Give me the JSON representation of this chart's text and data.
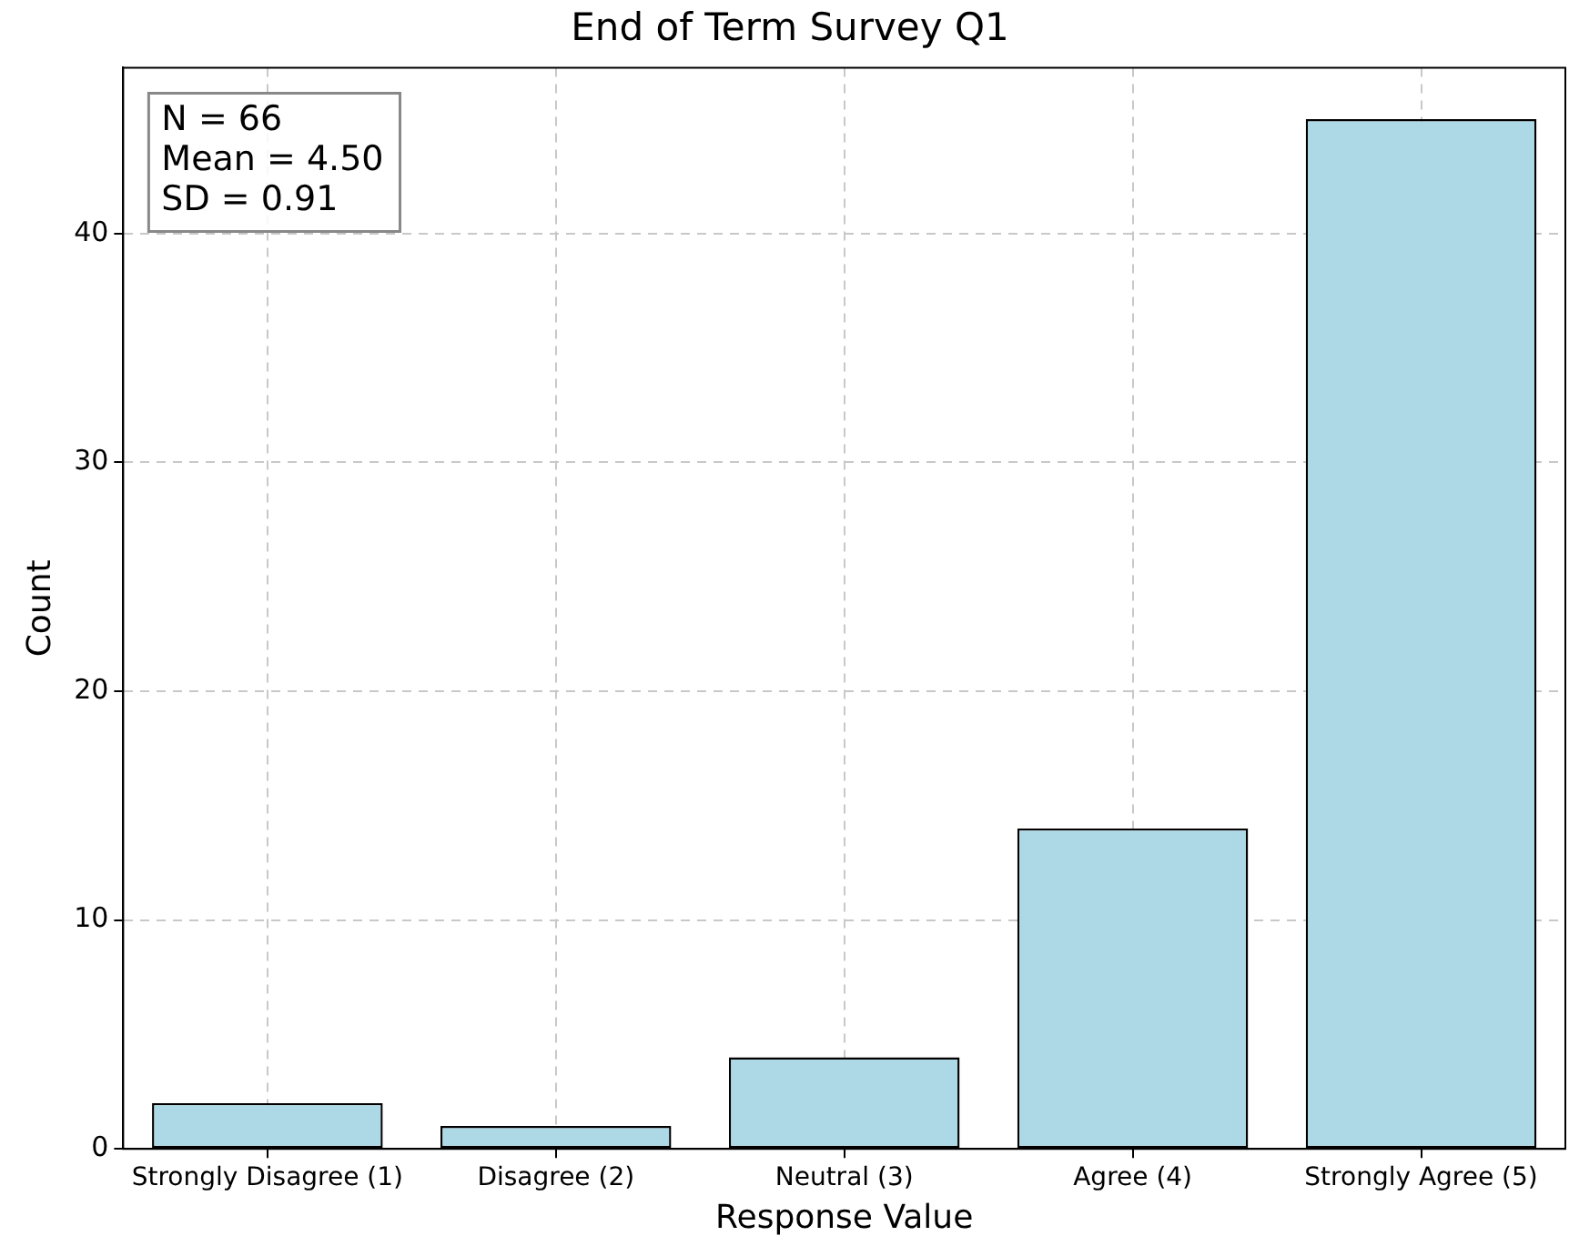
{
  "chart_data": {
    "type": "bar",
    "title": "End of Term Survey Q1",
    "xlabel": "Response Value",
    "ylabel": "Count",
    "categories": [
      "Strongly Disagree (1)",
      "Disagree (2)",
      "Neutral (3)",
      "Agree (4)",
      "Strongly Agree (5)"
    ],
    "values": [
      2,
      1,
      4,
      14,
      45
    ],
    "color": "#add8e6",
    "ylim": [
      0,
      47.25
    ],
    "yticks": [
      0,
      10,
      20,
      30,
      40
    ],
    "grid": true,
    "legend": false,
    "annotations": [
      "N = 66",
      "Mean = 4.50",
      "SD = 0.91"
    ]
  }
}
